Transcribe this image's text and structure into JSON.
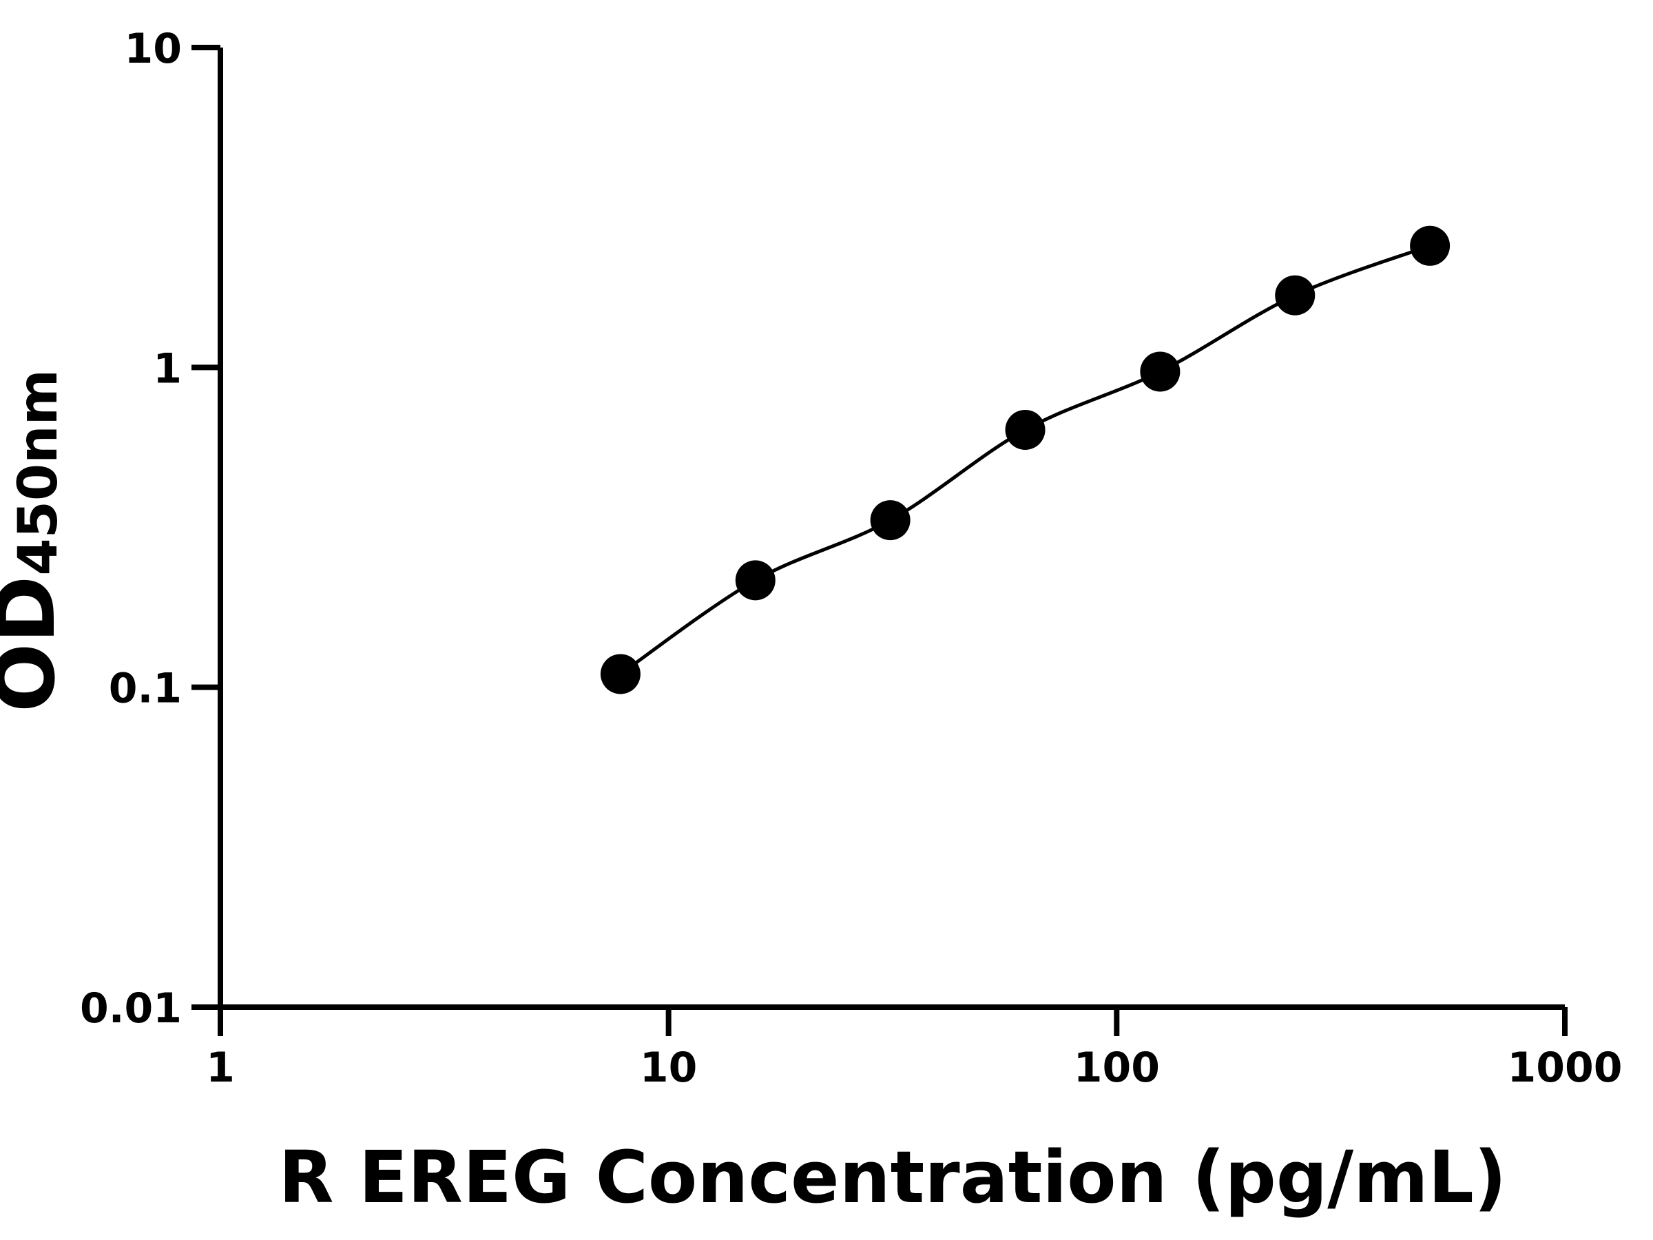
{
  "chart_data": {
    "type": "scatter",
    "x_label": "R EREG Concentration (pg/mL)",
    "y_label": "OD",
    "y_label_sub": "450nm",
    "log_x": true,
    "log_y": true,
    "x": [
      7.8125,
      15.625,
      31.25,
      62.5,
      125,
      250,
      500
    ],
    "series": [
      {
        "color": "#000000",
        "values": [
          0.11,
          0.216,
          0.333,
          0.638,
          0.97,
          1.68,
          2.4
        ]
      }
    ],
    "xlim": [
      1,
      1000
    ],
    "xticks": [
      1,
      10,
      100,
      1000
    ],
    "ylim": [
      0.01,
      10
    ],
    "yticks": [
      0.01,
      0.1,
      1,
      10
    ],
    "fit_curve": true
  }
}
